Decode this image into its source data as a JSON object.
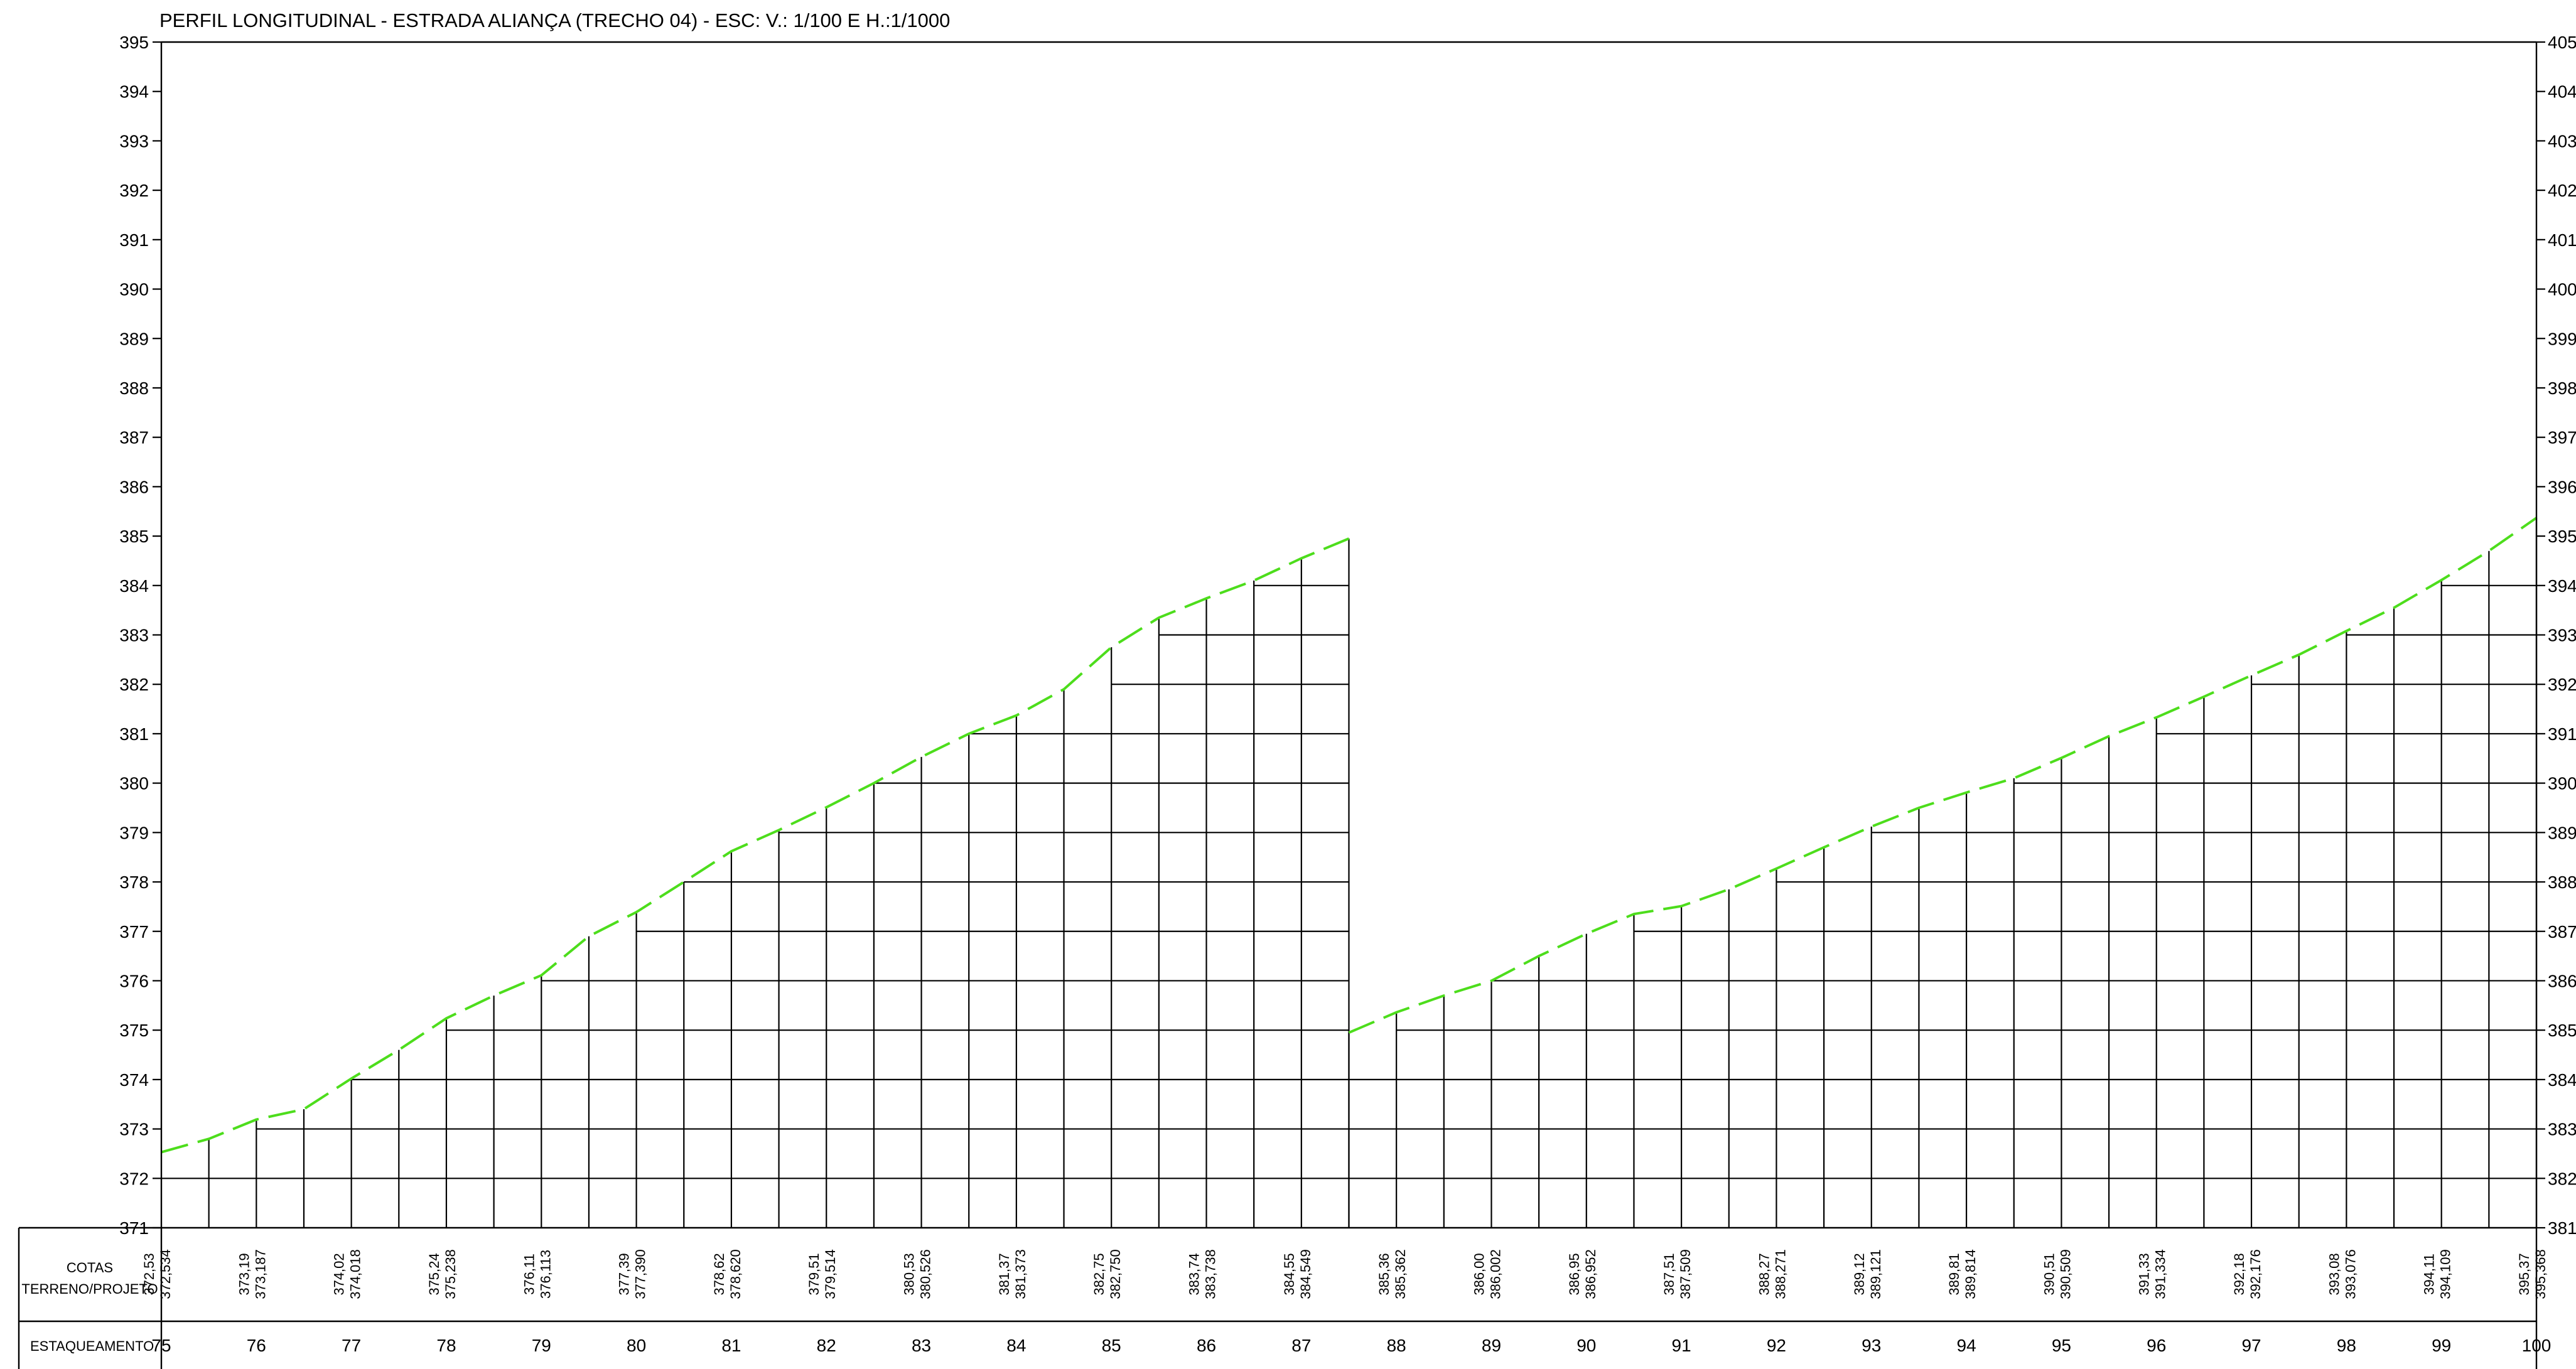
{
  "title": "PERFIL LONGITUDINAL - ESTRADA ALIANÇA (TRECHO 04) - ESC: V.: 1/100 E H.:1/1000",
  "axes": {
    "left": {
      "min": 371,
      "max": 395,
      "ticks": [
        "395",
        "394",
        "393",
        "392",
        "391",
        "390",
        "389",
        "388",
        "387",
        "386",
        "385",
        "384",
        "383",
        "382",
        "381",
        "380",
        "379",
        "378",
        "377",
        "376",
        "375",
        "374",
        "373",
        "372",
        "371"
      ]
    },
    "right": {
      "min": 381,
      "max": 405,
      "ticks": [
        "405",
        "404",
        "403",
        "402",
        "401",
        "400",
        "399",
        "398",
        "397",
        "396",
        "395",
        "394",
        "393",
        "392",
        "391",
        "390",
        "389",
        "388",
        "387",
        "386",
        "385",
        "384",
        "383",
        "382",
        "381"
      ]
    }
  },
  "table": {
    "rows": [
      {
        "label": "COTAS TERRENO/PROJETO",
        "label_lines": [
          "COTAS",
          "TERRENO/PROJETO"
        ]
      },
      {
        "label": "ESTAQUEAMENTO"
      }
    ]
  },
  "colors": {
    "profile_line": "#4ddd1c",
    "lines": "#000000",
    "background": "#ffffff"
  },
  "chart_data": {
    "type": "line",
    "title": "PERFIL LONGITUDINAL - ESTRADA ALIANÇA (TRECHO 04) - ESC: V.: 1/100 E H.:1/1000",
    "xlabel": "ESTAQUEAMENTO",
    "ylabel": "COTAS TERRENO/PROJETO",
    "x_ticks": [
      "75",
      "76",
      "77",
      "78",
      "79",
      "80",
      "81",
      "82",
      "83",
      "84",
      "85",
      "86",
      "87",
      "88",
      "89",
      "90",
      "91",
      "92",
      "93",
      "94",
      "95",
      "96",
      "97",
      "98",
      "99",
      "100"
    ],
    "grid": true,
    "series": [
      {
        "axis": "left",
        "x": [
          75,
          75.5,
          76,
          76.5,
          77,
          77.5,
          78,
          78.5,
          79,
          79.5,
          80,
          80.5,
          81,
          81.5,
          82,
          82.5,
          83,
          83.5,
          84,
          84.5,
          85,
          85.5,
          86,
          86.5,
          87,
          87.5
        ],
        "y": [
          372.53,
          372.8,
          373.19,
          373.4,
          374.02,
          374.6,
          375.24,
          375.7,
          376.11,
          376.9,
          377.39,
          378.0,
          378.62,
          379.05,
          379.51,
          380.0,
          380.53,
          381.0,
          381.37,
          381.9,
          382.75,
          383.35,
          383.74,
          384.1,
          384.55,
          384.95
        ]
      },
      {
        "axis": "right",
        "x": [
          87.5,
          88,
          88.5,
          89,
          89.5,
          90,
          90.5,
          91,
          91.5,
          92,
          92.5,
          93,
          93.5,
          94,
          94.5,
          95,
          95.5,
          96,
          96.5,
          97,
          97.5,
          98,
          98.5,
          99,
          99.5,
          100
        ],
        "y": [
          384.95,
          385.36,
          385.7,
          386.0,
          386.5,
          386.95,
          387.35,
          387.51,
          387.85,
          388.27,
          388.7,
          389.12,
          389.5,
          389.81,
          390.1,
          390.51,
          390.95,
          391.33,
          391.75,
          392.18,
          392.6,
          393.08,
          393.55,
          394.11,
          394.7,
          395.37
        ]
      }
    ],
    "labels": [
      {
        "estaca": "75",
        "terreno": "372,53",
        "projeto": "372,534"
      },
      {
        "estaca": "76",
        "terreno": "373,19",
        "projeto": "373,187"
      },
      {
        "estaca": "77",
        "terreno": "374,02",
        "projeto": "374,018"
      },
      {
        "estaca": "78",
        "terreno": "375,24",
        "projeto": "375,238"
      },
      {
        "estaca": "79",
        "terreno": "376,11",
        "projeto": "376,113"
      },
      {
        "estaca": "80",
        "terreno": "377,39",
        "projeto": "377,390"
      },
      {
        "estaca": "81",
        "terreno": "378,62",
        "projeto": "378,620"
      },
      {
        "estaca": "82",
        "terreno": "379,51",
        "projeto": "379,514"
      },
      {
        "estaca": "83",
        "terreno": "380,53",
        "projeto": "380,526"
      },
      {
        "estaca": "84",
        "terreno": "381,37",
        "projeto": "381,373"
      },
      {
        "estaca": "85",
        "terreno": "382,75",
        "projeto": "382,750"
      },
      {
        "estaca": "86",
        "terreno": "383,74",
        "projeto": "383,738"
      },
      {
        "estaca": "87",
        "terreno": "384,55",
        "projeto": "384,549"
      },
      {
        "estaca": "88",
        "terreno": "385,36",
        "projeto": "385,362"
      },
      {
        "estaca": "89",
        "terreno": "386,00",
        "projeto": "386,002"
      },
      {
        "estaca": "90",
        "terreno": "386,95",
        "projeto": "386,952"
      },
      {
        "estaca": "91",
        "terreno": "387,51",
        "projeto": "387,509"
      },
      {
        "estaca": "92",
        "terreno": "388,27",
        "projeto": "388,271"
      },
      {
        "estaca": "93",
        "terreno": "389,12",
        "projeto": "389,121"
      },
      {
        "estaca": "94",
        "terreno": "389,81",
        "projeto": "389,814"
      },
      {
        "estaca": "95",
        "terreno": "390,51",
        "projeto": "390,509"
      },
      {
        "estaca": "96",
        "terreno": "391,33",
        "projeto": "391,334"
      },
      {
        "estaca": "97",
        "terreno": "392,18",
        "projeto": "392,176"
      },
      {
        "estaca": "98",
        "terreno": "393,08",
        "projeto": "393,076"
      },
      {
        "estaca": "99",
        "terreno": "394,11",
        "projeto": "394,109"
      },
      {
        "estaca": "100",
        "terreno": "395,37",
        "projeto": "395,368"
      }
    ]
  }
}
